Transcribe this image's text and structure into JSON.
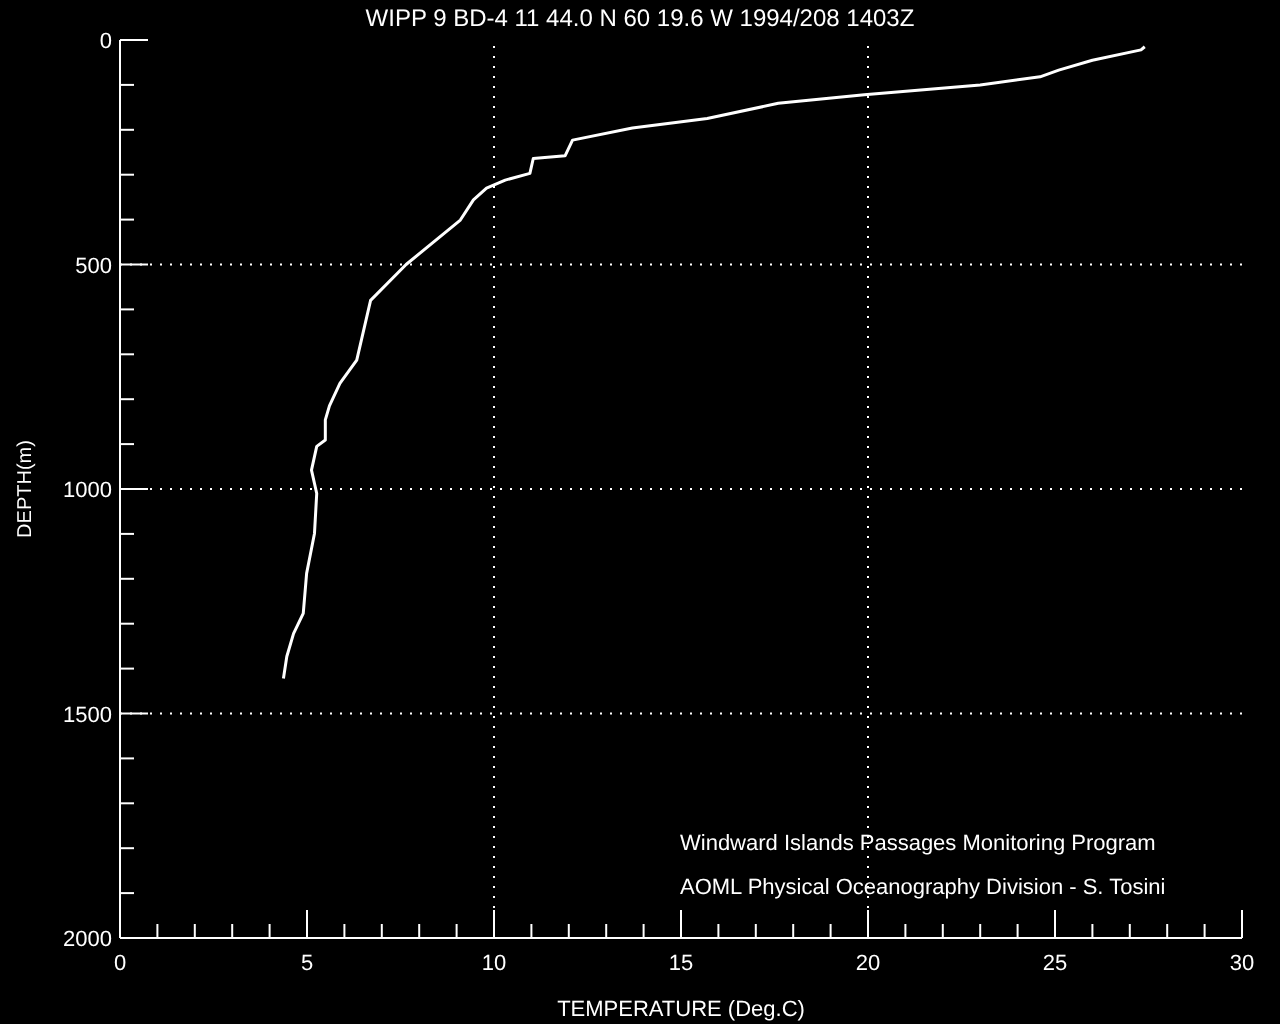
{
  "chart_data": {
    "type": "line",
    "title": "WIPP 9 BD-4  11 44.0 N  60 19.6 W  1994/208 1403Z",
    "xlabel": "TEMPERATURE (Deg.C)",
    "ylabel": "DEPTH(m)",
    "annotations": [
      "Windward Islands Passages Monitoring Program",
      "AOML Physical Oceanography Division - S. Tosini"
    ],
    "series": [
      {
        "color": "#ffffff",
        "x": [
          27.4,
          27.3,
          26.0,
          25.1,
          24.6,
          23.0,
          19.9,
          17.6,
          15.7,
          13.7,
          12.1,
          11.9,
          11.05,
          10.96,
          10.3,
          9.8,
          9.45,
          9.1,
          7.65,
          6.7,
          6.33,
          5.88,
          5.6,
          5.49,
          5.49,
          5.26,
          5.12,
          5.26,
          5.2,
          4.99,
          4.9,
          4.64,
          4.46,
          4.37
        ],
        "values": [
          15,
          22,
          45,
          67,
          82,
          100,
          122,
          141,
          175,
          196,
          223,
          258,
          264,
          297,
          312,
          330,
          356,
          401,
          500,
          580,
          713,
          765,
          815,
          846,
          891,
          905,
          958,
          1010,
          1099,
          1188,
          1277,
          1322,
          1373,
          1422
        ]
      }
    ],
    "xlim": [
      0,
      30
    ],
    "ylim": [
      2000,
      0
    ],
    "xticks": [
      0,
      {
        "value": 1,
        "label": null
      },
      {
        "value": 2,
        "label": null
      },
      {
        "value": 3,
        "label": null
      },
      {
        "value": 4,
        "label": null
      },
      5,
      {
        "value": 6,
        "label": null
      },
      {
        "value": 7,
        "label": null
      },
      {
        "value": 8,
        "label": null
      },
      {
        "value": 9,
        "label": null
      },
      10,
      {
        "value": 11,
        "label": null
      },
      {
        "value": 12,
        "label": null
      },
      {
        "value": 13,
        "label": null
      },
      {
        "value": 14,
        "label": null
      },
      15,
      {
        "value": 16,
        "label": null
      },
      {
        "value": 17,
        "label": null
      },
      {
        "value": 18,
        "label": null
      },
      {
        "value": 19,
        "label": null
      },
      20,
      {
        "value": 21,
        "label": null
      },
      {
        "value": 22,
        "label": null
      },
      {
        "value": 23,
        "label": null
      },
      {
        "value": 24,
        "label": null
      },
      25,
      {
        "value": 26,
        "label": null
      },
      {
        "value": 27,
        "label": null
      },
      {
        "value": 28,
        "label": null
      },
      {
        "value": 29,
        "label": null
      },
      30
    ],
    "yticks": [
      0,
      {
        "value": 100,
        "label": null
      },
      {
        "value": 200,
        "label": null
      },
      {
        "value": 300,
        "label": null
      },
      {
        "value": 400,
        "label": null
      },
      500,
      {
        "value": 600,
        "label": null
      },
      {
        "value": 700,
        "label": null
      },
      {
        "value": 800,
        "label": null
      },
      {
        "value": 900,
        "label": null
      },
      1000,
      {
        "value": 1100,
        "label": null
      },
      {
        "value": 1200,
        "label": null
      },
      {
        "value": 1300,
        "label": null
      },
      {
        "value": 1400,
        "label": null
      },
      1500,
      {
        "value": 1600,
        "label": null
      },
      {
        "value": 1700,
        "label": null
      },
      {
        "value": 1800,
        "label": null
      },
      {
        "value": 1900,
        "label": null
      },
      2000
    ],
    "ref_lines": [
      {
        "axis": "x",
        "value": 10,
        "line_style": "dotted",
        "color": "#ffffff"
      },
      {
        "axis": "x",
        "value": 20,
        "line_style": "dotted",
        "color": "#ffffff"
      },
      {
        "axis": "y",
        "value": 500,
        "line_style": "dotted",
        "color": "#ffffff"
      },
      {
        "axis": "y",
        "value": 1000,
        "line_style": "dotted",
        "color": "#ffffff"
      },
      {
        "axis": "y",
        "value": 1500,
        "line_style": "dotted",
        "color": "#ffffff"
      }
    ],
    "marker": "none",
    "line_style": "solid",
    "legend": false
  }
}
